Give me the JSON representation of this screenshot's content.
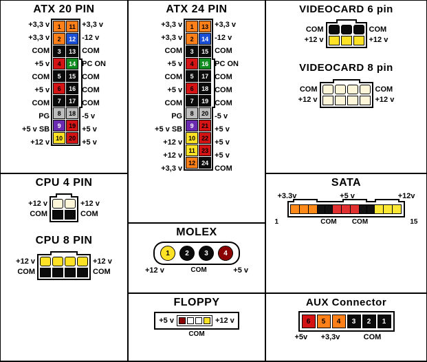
{
  "colors": {
    "orange": "#ff7f18",
    "blue": "#1a4fd6",
    "black": "#0b0b0b",
    "green": "#0f8a1f",
    "red": "#d41414",
    "darkred": "#8b0000",
    "gray": "#bdbdbd",
    "purple": "#6a2bb0",
    "yellow": "#ffe225",
    "white": "#ffffff",
    "offwhite": "#fdf6d8",
    "sata_orange": "#ff8a1a",
    "sata_red": "#e03030",
    "sata_black": "#111111",
    "sata_yellow": "#ffe833"
  },
  "atx20": {
    "title": "ATX 20 PIN",
    "left_labels": [
      "+3,3 v",
      "+3,3 v",
      "COM",
      "+5 v",
      "COM",
      "+5 v",
      "COM",
      "PG",
      "+5 v SB",
      "+12 v"
    ],
    "right_labels": [
      "+3,3 v",
      "-12 v",
      "COM",
      "PC ON",
      "COM",
      "COM",
      "COM",
      "-5 v",
      "+5 v",
      "+5 v"
    ],
    "pins": [
      {
        "n": "1",
        "c": "orange"
      },
      {
        "n": "11",
        "c": "orange"
      },
      {
        "n": "2",
        "c": "orange"
      },
      {
        "n": "12",
        "c": "blue"
      },
      {
        "n": "3",
        "c": "black"
      },
      {
        "n": "13",
        "c": "black"
      },
      {
        "n": "4",
        "c": "red"
      },
      {
        "n": "14",
        "c": "green"
      },
      {
        "n": "5",
        "c": "black"
      },
      {
        "n": "15",
        "c": "black"
      },
      {
        "n": "6",
        "c": "red"
      },
      {
        "n": "16",
        "c": "black"
      },
      {
        "n": "7",
        "c": "black"
      },
      {
        "n": "17",
        "c": "black"
      },
      {
        "n": "8",
        "c": "gray"
      },
      {
        "n": "18",
        "c": "gray"
      },
      {
        "n": "9",
        "c": "purple"
      },
      {
        "n": "19",
        "c": "red"
      },
      {
        "n": "10",
        "c": "yellow"
      },
      {
        "n": "20",
        "c": "red"
      }
    ],
    "clip_row_start": 4,
    "clip_row_end": 7
  },
  "atx24": {
    "title": "ATX 24 PIN",
    "left_labels": [
      "+3,3 v",
      "+3,3 v",
      "COM",
      "+5 v",
      "COM",
      "+5 v",
      "COM",
      "PG",
      "+5 v SB",
      "+12 v",
      "+12 v",
      "+3,3 v"
    ],
    "right_labels": [
      "+3,3 v",
      "-12 v",
      "COM",
      "PC ON",
      "COM",
      "COM",
      "COM",
      "-5 v",
      "+5 v",
      "+5 v",
      "+5 v",
      "COM"
    ],
    "pins": [
      {
        "n": "1",
        "c": "orange"
      },
      {
        "n": "13",
        "c": "orange"
      },
      {
        "n": "2",
        "c": "orange"
      },
      {
        "n": "14",
        "c": "blue"
      },
      {
        "n": "3",
        "c": "black"
      },
      {
        "n": "15",
        "c": "black"
      },
      {
        "n": "4",
        "c": "red"
      },
      {
        "n": "16",
        "c": "green"
      },
      {
        "n": "5",
        "c": "black"
      },
      {
        "n": "17",
        "c": "black"
      },
      {
        "n": "6",
        "c": "red"
      },
      {
        "n": "18",
        "c": "black"
      },
      {
        "n": "7",
        "c": "black"
      },
      {
        "n": "19",
        "c": "black"
      },
      {
        "n": "8",
        "c": "gray"
      },
      {
        "n": "20",
        "c": "gray"
      },
      {
        "n": "9",
        "c": "purple"
      },
      {
        "n": "21",
        "c": "red"
      },
      {
        "n": "10",
        "c": "yellow"
      },
      {
        "n": "22",
        "c": "red"
      },
      {
        "n": "11",
        "c": "yellow"
      },
      {
        "n": "23",
        "c": "red"
      },
      {
        "n": "12",
        "c": "orange"
      },
      {
        "n": "24",
        "c": "black"
      }
    ],
    "clip_row_start": 4,
    "clip_row_end": 7
  },
  "cpu4": {
    "title": "CPU 4 PIN",
    "left": [
      "+12 v",
      "COM"
    ],
    "right": [
      "+12 v",
      "COM"
    ],
    "cols": 2,
    "rows": 2,
    "cells": [
      {
        "c": "offwhite",
        "round": true
      },
      {
        "c": "offwhite",
        "round": true
      },
      {
        "c": "black",
        "round": false
      },
      {
        "c": "black",
        "round": false
      }
    ]
  },
  "cpu8": {
    "title": "CPU 8 PIN",
    "left": [
      "+12 v",
      "COM"
    ],
    "right": [
      "+12 v",
      "COM"
    ],
    "cols": 4,
    "rows": 2,
    "cells": [
      {
        "c": "yellow",
        "round": true
      },
      {
        "c": "yellow",
        "round": true
      },
      {
        "c": "yellow",
        "round": true
      },
      {
        "c": "yellow",
        "round": true
      },
      {
        "c": "black",
        "round": false
      },
      {
        "c": "black",
        "round": false
      },
      {
        "c": "black",
        "round": false
      },
      {
        "c": "black",
        "round": false
      }
    ]
  },
  "vc6": {
    "title": "VIDEOCARD 6 pin",
    "left": [
      "COM",
      "+12 v"
    ],
    "right": [
      "COM",
      "+12 v"
    ],
    "cols": 3,
    "rows": 2,
    "cells": [
      {
        "c": "black",
        "round": true
      },
      {
        "c": "black",
        "round": true
      },
      {
        "c": "black",
        "round": true
      },
      {
        "c": "yellow",
        "round": false
      },
      {
        "c": "yellow",
        "round": false
      },
      {
        "c": "yellow",
        "round": false
      }
    ]
  },
  "vc8": {
    "title": "VIDEOCARD 8 pin",
    "left": [
      "COM",
      "+12 v"
    ],
    "right": [
      "COM",
      "+12 v"
    ],
    "cols": 4,
    "rows": 2,
    "cells": [
      {
        "c": "offwhite",
        "round": true
      },
      {
        "c": "offwhite",
        "round": true
      },
      {
        "c": "offwhite",
        "round": true
      },
      {
        "c": "offwhite",
        "round": true
      },
      {
        "c": "offwhite",
        "round": false
      },
      {
        "c": "offwhite",
        "round": false
      },
      {
        "c": "offwhite",
        "round": false
      },
      {
        "c": "offwhite",
        "round": false
      }
    ]
  },
  "molex": {
    "title": "MOLEX",
    "pins": [
      {
        "n": "1",
        "c": "yellow",
        "tc": "#000"
      },
      {
        "n": "2",
        "c": "black",
        "tc": "#fff"
      },
      {
        "n": "3",
        "c": "black",
        "tc": "#fff"
      },
      {
        "n": "4",
        "c": "darkred",
        "tc": "#fff"
      }
    ],
    "left": "+12 v",
    "mid": "COM",
    "right": "+5 v"
  },
  "floppy": {
    "title": "FLOPPY",
    "pins": [
      {
        "c": "darkred"
      },
      {
        "c": "white"
      },
      {
        "c": "white"
      },
      {
        "c": "yellow"
      }
    ],
    "left": "+5 v",
    "mid": "COM",
    "right": "+12 v"
  },
  "sata": {
    "title": "SATA",
    "top": [
      "+3.3v",
      "+5 v",
      "+12v"
    ],
    "segments": [
      {
        "c": "sata_orange",
        "w": 14
      },
      {
        "c": "sata_orange",
        "w": 14
      },
      {
        "c": "sata_orange",
        "w": 14
      },
      {
        "c": "sata_black",
        "w": 12
      },
      {
        "c": "sata_black",
        "w": 12
      },
      {
        "c": "sata_red",
        "w": 14
      },
      {
        "c": "sata_red",
        "w": 14
      },
      {
        "c": "sata_red",
        "w": 14
      },
      {
        "c": "sata_black",
        "w": 12
      },
      {
        "c": "sata_black",
        "w": 12
      },
      {
        "c": "sata_yellow",
        "w": 14
      },
      {
        "c": "sata_yellow",
        "w": 14
      },
      {
        "c": "sata_yellow",
        "w": 14
      }
    ],
    "bot_left": "1",
    "bot_mid": "COM        COM",
    "bot_right": "15"
  },
  "aux": {
    "title": "AUX Connector",
    "pins": [
      {
        "n": "6",
        "c": "red"
      },
      {
        "n": "5",
        "c": "orange"
      },
      {
        "n": "4",
        "c": "orange"
      },
      {
        "n": "3",
        "c": "black"
      },
      {
        "n": "2",
        "c": "black"
      },
      {
        "n": "1",
        "c": "black"
      }
    ],
    "l1": "+5v",
    "l2": "+3,3v",
    "l3": "COM"
  }
}
